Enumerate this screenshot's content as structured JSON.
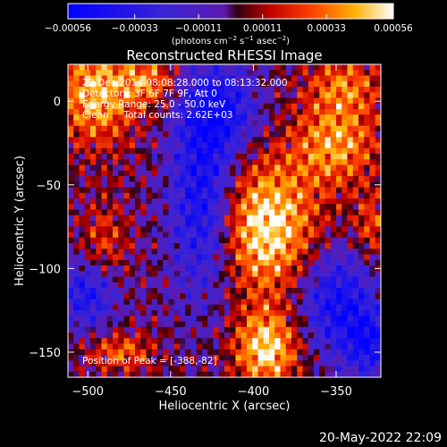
{
  "chart_data": {
    "type": "heatmap",
    "title": "Reconstructed RHESSI Image",
    "xlabel": "Heliocentric X (arcsec)",
    "ylabel": "Heliocentric Y (arcsec)",
    "xlim": [
      -512,
      -323
    ],
    "ylim": [
      -165,
      22
    ],
    "x_ticks": [
      -500,
      -450,
      -400,
      -350
    ],
    "x_tick_labels": [
      "−500",
      "−450",
      "−400",
      "−350"
    ],
    "y_ticks": [
      0,
      -50,
      -100,
      -150
    ],
    "y_tick_labels": [
      "0",
      "−50",
      "−100",
      "−150"
    ],
    "colorbar": {
      "range": [
        -0.00056,
        0.00056
      ],
      "ticks": [
        -0.00056,
        -0.00033,
        -0.00011,
        0.00011,
        0.00033,
        0.00056
      ],
      "tick_labels": [
        "−0.00056",
        "−0.00033",
        "−0.00011",
        "0.00011",
        "0.00033",
        "0.00056"
      ],
      "unit_parts": [
        "(photons cm",
        "−2",
        " s",
        "−1",
        " asec",
        "−2",
        ")"
      ],
      "colormap": "blue-purple-red-orange-yellow-white"
    },
    "sources": [
      {
        "x": -495,
        "y": 5,
        "peak": 0.00045,
        "sx": 18,
        "sy": 22
      },
      {
        "x": -462,
        "y": 12,
        "peak": 0.0003,
        "sx": 12,
        "sy": 10
      },
      {
        "x": -393,
        "y": -75,
        "peak": 0.00056,
        "sx": 22,
        "sy": 28
      },
      {
        "x": -392,
        "y": -148,
        "peak": 0.00052,
        "sx": 14,
        "sy": 16
      },
      {
        "x": -350,
        "y": -25,
        "peak": 0.0004,
        "sx": 18,
        "sy": 18
      },
      {
        "x": -345,
        "y": 10,
        "peak": 0.0003,
        "sx": 16,
        "sy": 12
      },
      {
        "x": -490,
        "y": -85,
        "peak": 0.00022,
        "sx": 10,
        "sy": 18
      },
      {
        "x": -328,
        "y": -75,
        "peak": 0.00025,
        "sx": 8,
        "sy": 14
      },
      {
        "x": -480,
        "y": -150,
        "peak": 0.0003,
        "sx": 14,
        "sy": 8
      },
      {
        "x": -430,
        "y": -60,
        "peak": -0.0005,
        "sx": 14,
        "sy": 40
      },
      {
        "x": -350,
        "y": -120,
        "peak": -0.00045,
        "sx": 16,
        "sy": 22
      },
      {
        "x": -500,
        "y": -115,
        "peak": -0.0004,
        "sx": 12,
        "sy": 14
      },
      {
        "x": -330,
        "y": -145,
        "peak": -0.0004,
        "sx": 10,
        "sy": 14
      },
      {
        "x": -420,
        "y": -5,
        "peak": -0.0004,
        "sx": 16,
        "sy": 18
      }
    ],
    "peak_position": [
      -388,
      -82
    ]
  },
  "annotations": {
    "time_range": "22-Dec-2014 08:08:28.000 to 08:13:32.000",
    "detectors": "Detectors: 3F 6F 7F 9F, Att 0",
    "energy_range": "Energy Range: 25.0 - 50.0 keV",
    "clean_counts": "Clean     Total counts: 2.62E+03",
    "peak_label": "Position of Peak = [-388,-82]"
  },
  "footer_date": "20-May-2022 22:09"
}
